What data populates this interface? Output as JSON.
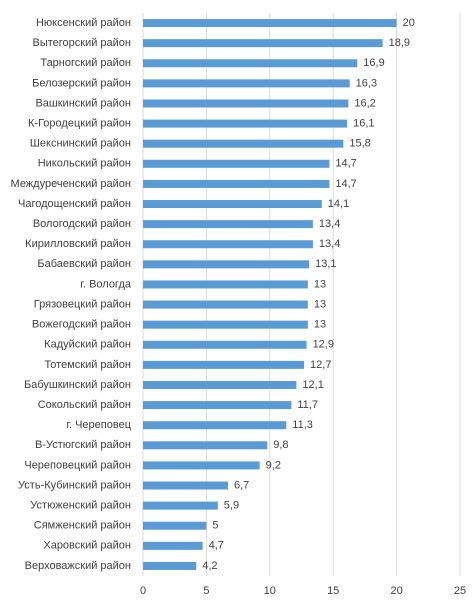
{
  "chart_data": {
    "type": "bar",
    "orientation": "horizontal",
    "categories": [
      "Нюксенский район",
      "Вытегорский район",
      "Тарногский район",
      "Белозерский район",
      "Вашкинский район",
      "К-Городецкий район",
      "Шекснинский район",
      "Никольский район",
      "Междуреченский район",
      "Чагодощенский район",
      "Вологодский район",
      "Кирилловский район",
      "Бабаевский район",
      "г. Вологда",
      "Грязовецкий район",
      "Вожегодский район",
      "Кадуйский район",
      "Тотемский район",
      "Бабушкинский район",
      "Сокольский район",
      "г. Череповец",
      "В-Устюгский район",
      "Череповецкий район",
      "Усть-Кубинский район",
      "Устюженский район",
      "Сямженский район",
      "Харовский район",
      "Верховажский район"
    ],
    "values": [
      20,
      18.9,
      16.9,
      16.3,
      16.2,
      16.1,
      15.8,
      14.7,
      14.7,
      14.1,
      13.4,
      13.4,
      13.1,
      13,
      13,
      13,
      12.9,
      12.7,
      12.1,
      11.7,
      11.3,
      9.8,
      9.2,
      6.7,
      5.9,
      5,
      4.7,
      4.2
    ],
    "value_labels": [
      "20",
      "18,9",
      "16,9",
      "16,3",
      "16,2",
      "16,1",
      "15,8",
      "14,7",
      "14,7",
      "14,1",
      "13,4",
      "13,4",
      "13,1",
      "13",
      "13",
      "13",
      "12,9",
      "12,7",
      "12,1",
      "11,7",
      "11,3",
      "9,8",
      "9,2",
      "6,7",
      "5,9",
      "5",
      "4,7",
      "4,2"
    ],
    "color": "#5b9bd5",
    "xlim": [
      0,
      25
    ],
    "xticks": [
      0,
      5,
      10,
      15,
      20,
      25
    ],
    "grid": true
  }
}
